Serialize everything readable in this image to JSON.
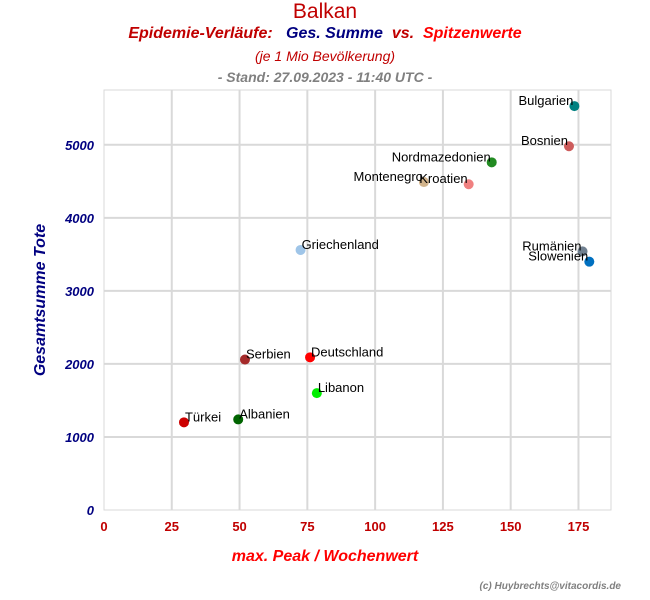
{
  "header": {
    "title": "Balkan",
    "subtitle_part1": "Epidemie-Verläufe:",
    "subtitle_part2": "Ges. Summe",
    "subtitle_part3": "vs.",
    "subtitle_part4": "Spitzenwerte",
    "note": "(je 1 Mio Bevölkerung)",
    "stand": "- Stand: 27.09.2023 - 11:40 UTC -"
  },
  "footer": {
    "credit": "(c) Huybrechts@vitacordis.de"
  },
  "chart_data": {
    "type": "scatter",
    "xlabel": "max. Peak / Wochenwert",
    "ylabel": "Gesamtsumme Tote",
    "xlim": [
      0,
      187
    ],
    "ylim": [
      0,
      5750
    ],
    "xticks": [
      0,
      25,
      50,
      75,
      100,
      125,
      150,
      175
    ],
    "yticks": [
      0,
      1000,
      2000,
      3000,
      4000,
      5000
    ],
    "grid": true,
    "points": [
      {
        "label": "Bulgarien",
        "x": 173.5,
        "y": 5530,
        "color": "#008080",
        "label_pos": "left"
      },
      {
        "label": "Bosnien",
        "x": 171.5,
        "y": 4980,
        "color": "#cd5c5c",
        "label_pos": "left"
      },
      {
        "label": "Nordmazedonien",
        "x": 143,
        "y": 4760,
        "color": "#228b22",
        "label_pos": "left"
      },
      {
        "label": "Montenegro",
        "x": 118,
        "y": 4490,
        "color": "#d2b48c",
        "label_pos": "left"
      },
      {
        "label": "Kroatien",
        "x": 134.5,
        "y": 4460,
        "color": "#f08080",
        "label_pos": "left"
      },
      {
        "label": "Rumänien",
        "x": 176.5,
        "y": 3540,
        "color": "#708090",
        "label_pos": "left"
      },
      {
        "label": "Slowenien",
        "x": 179,
        "y": 3400,
        "color": "#0070c0",
        "label_pos": "left"
      },
      {
        "label": "Griechenland",
        "x": 72.5,
        "y": 3560,
        "color": "#9fc5e8",
        "label_pos": "right"
      },
      {
        "label": "Serbien",
        "x": 52,
        "y": 2060,
        "color": "#a52a2a",
        "label_pos": "right"
      },
      {
        "label": "Deutschland",
        "x": 76,
        "y": 2090,
        "color": "#ff0000",
        "label_pos": "right"
      },
      {
        "label": "Libanon",
        "x": 78.5,
        "y": 1600,
        "color": "#00ee00",
        "label_pos": "right"
      },
      {
        "label": "Albanien",
        "x": 49.5,
        "y": 1240,
        "color": "#006400",
        "label_pos": "right"
      },
      {
        "label": "Türkei",
        "x": 29.5,
        "y": 1200,
        "color": "#cc0000",
        "label_pos": "right"
      }
    ]
  }
}
